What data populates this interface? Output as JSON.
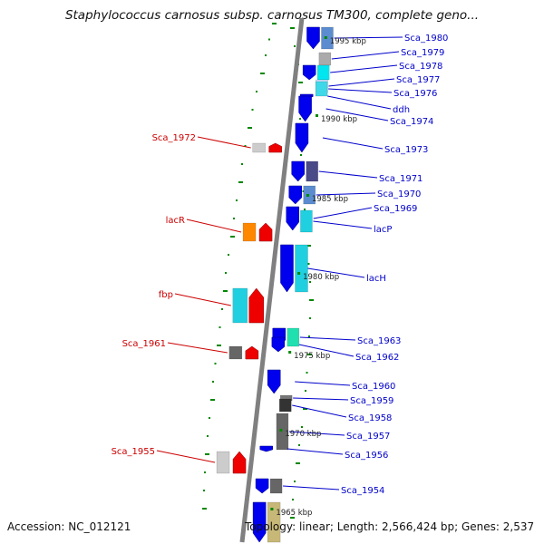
{
  "header": {
    "title": "Staphylococcus carnosus subsp. carnosus TM300, complete geno..."
  },
  "footer": {
    "accession": "Accession: NC_012121",
    "summary": "Topology: linear; Length: 2,566,424 bp; Genes: 2,537"
  },
  "colors": {
    "plus_strand": "#0000ee",
    "minus_strand": "#ee0000",
    "label_plus": "#0000cc",
    "label_minus": "#cc0000",
    "backbone": "#808080",
    "gc_dots": "#008800"
  },
  "scale_marks": [
    "1995 kbp",
    "1990 kbp",
    "1985 kbp",
    "1980 kbp",
    "1975 kbp",
    "1970 kbp",
    "1965 kbp"
  ],
  "genes_plus": [
    {
      "label": "Sca_1980",
      "color": "#5b8ccf"
    },
    {
      "label": "Sca_1979",
      "color": "#aaaaaa"
    },
    {
      "label": "Sca_1978",
      "color": "#00e6f0"
    },
    {
      "label": "Sca_1977",
      "color": "#c8e0ff"
    },
    {
      "label": "Sca_1976",
      "color": "#40d8e8"
    },
    {
      "label": "ddh",
      "color": "#0000ee"
    },
    {
      "label": "Sca_1974",
      "color": "#0000ee"
    },
    {
      "label": "Sca_1973",
      "color": "#0000ee"
    },
    {
      "label": "Sca_1971",
      "color": "#4a4a88"
    },
    {
      "label": "Sca_1970",
      "color": "#5b8ccf"
    },
    {
      "label": "Sca_1969",
      "color": "#0000ee"
    },
    {
      "label": "lacP",
      "color": "#20d0e0"
    },
    {
      "label": "lacH",
      "color": "#20d0e0"
    },
    {
      "label": "Sca_1963",
      "color": "#20e0b0"
    },
    {
      "label": "Sca_1962",
      "color": "#0000ee"
    },
    {
      "label": "Sca_1960",
      "color": "#0000ee"
    },
    {
      "label": "Sca_1959",
      "color": "#777777"
    },
    {
      "label": "Sca_1958",
      "color": "#333333"
    },
    {
      "label": "Sca_1957",
      "color": "#666666"
    },
    {
      "label": "Sca_1956",
      "color": "#0000ee"
    },
    {
      "label": "Sca_1954",
      "color": "#666666"
    }
  ],
  "genes_minus": [
    {
      "label": "Sca_1972",
      "color": "#cccccc"
    },
    {
      "label": "lacR",
      "color": "#ff8800"
    },
    {
      "label": "fbp",
      "color": "#20d0e0"
    },
    {
      "label": "Sca_1961",
      "color": "#666666"
    },
    {
      "label": "Sca_1955",
      "color": "#cccccc"
    }
  ],
  "unlabeled_genes": [
    {
      "color": "#c8b878"
    }
  ]
}
